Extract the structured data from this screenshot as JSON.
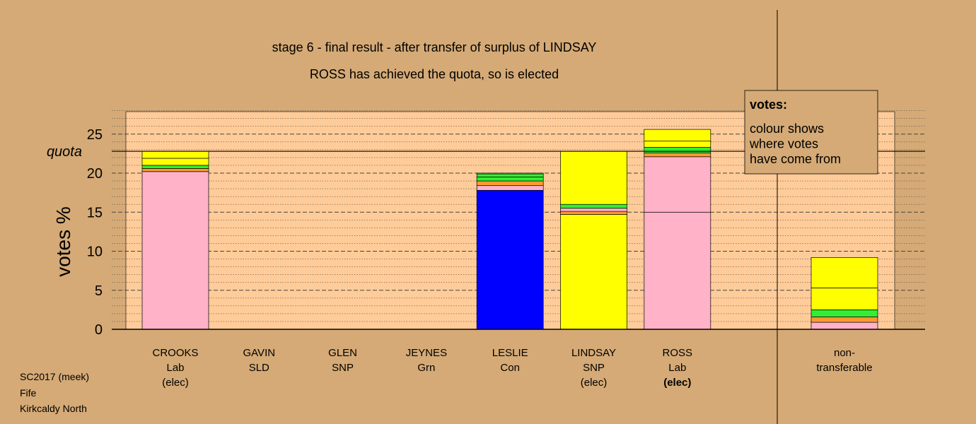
{
  "chart_data": {
    "type": "bar",
    "title": "stage 6 - final result - after transfer of surplus of LINDSAY",
    "subtitle": "ROSS has achieved the quota, so is elected",
    "ylabel": "votes %",
    "ylim": [
      0,
      27.8
    ],
    "yticks": [
      0,
      5,
      10,
      15,
      20,
      25
    ],
    "quota": 22.8,
    "quota_label": "quota",
    "colors": {
      "Lab": "#ffb2c8",
      "Con": "#0000ff",
      "SNP": "#ffff00",
      "SLD": "#ff9933",
      "Grn": "#33ee33",
      "background": "#d5aa76",
      "plot_area": "#ffcc99"
    },
    "candidates": [
      {
        "name": "CROOKS",
        "party": "Lab",
        "status": "(elec)",
        "segments": [
          {
            "v": 20.2,
            "c": "Lab"
          },
          {
            "v": 0.4,
            "c": "SLD"
          },
          {
            "v": 0.4,
            "c": "Grn"
          },
          {
            "v": 0.9,
            "c": "SNP"
          },
          {
            "v": 0.9,
            "c": "SNP"
          }
        ]
      },
      {
        "name": "GAVIN",
        "party": "SLD",
        "status": "",
        "segments": []
      },
      {
        "name": "GLEN",
        "party": "SNP",
        "status": "",
        "segments": []
      },
      {
        "name": "JEYNES",
        "party": "Grn",
        "status": "",
        "segments": []
      },
      {
        "name": "LESLIE",
        "party": "Con",
        "status": "",
        "segments": [
          {
            "v": 17.8,
            "c": "Con"
          },
          {
            "v": 0.6,
            "c": "Lab"
          },
          {
            "v": 0.6,
            "c": "SLD"
          },
          {
            "v": 0.5,
            "c": "Grn"
          },
          {
            "v": 0.4,
            "c": "Grn"
          },
          {
            "v": 0.1,
            "c": "SNP"
          }
        ]
      },
      {
        "name": "LINDSAY",
        "party": "SNP",
        "status": "(elec)",
        "segments": [
          {
            "v": 14.7,
            "c": "SNP"
          },
          {
            "v": 0.4,
            "c": "SLD"
          },
          {
            "v": 0.4,
            "c": "Lab"
          },
          {
            "v": 0.5,
            "c": "Grn"
          },
          {
            "v": 6.8,
            "c": "SNP"
          }
        ]
      },
      {
        "name": "ROSS",
        "party": "Lab",
        "status": "(elec)",
        "status_bold": true,
        "segments": [
          {
            "v": 15.0,
            "c": "Lab"
          },
          {
            "v": 7.1,
            "c": "Lab"
          },
          {
            "v": 0.5,
            "c": "SLD"
          },
          {
            "v": 0.7,
            "c": "Grn"
          },
          {
            "v": 0.8,
            "c": "SNP"
          },
          {
            "v": 1.5,
            "c": "SNP"
          }
        ]
      }
    ],
    "nontransferable": {
      "label_line1": "non-",
      "label_line2": "transferable",
      "segments": [
        {
          "v": 0.9,
          "c": "Lab"
        },
        {
          "v": 0.7,
          "c": "SLD"
        },
        {
          "v": 0.9,
          "c": "Grn"
        },
        {
          "v": 2.8,
          "c": "SNP"
        },
        {
          "v": 3.9,
          "c": "SNP"
        }
      ]
    },
    "legend": {
      "title": "votes:",
      "lines": [
        "colour shows",
        "where votes",
        "have come from"
      ],
      "placement": "top-right"
    }
  },
  "info": {
    "line1": "SC2017 (meek)",
    "line2": "Fife",
    "line3": "Kirkcaldy North"
  }
}
